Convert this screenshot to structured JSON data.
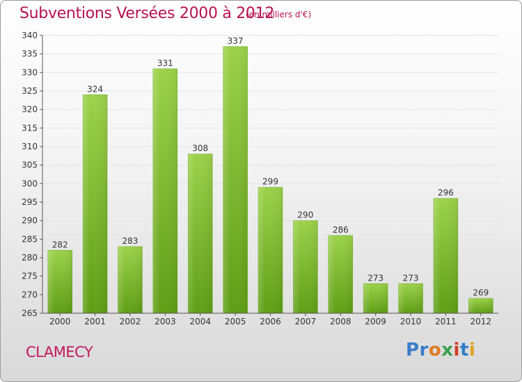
{
  "chart_data": {
    "type": "bar",
    "title": "Subventions Versées 2000 à 2012",
    "subtitle": "(en milliers d'€)",
    "categories": [
      "2000",
      "2001",
      "2002",
      "2003",
      "2004",
      "2005",
      "2006",
      "2007",
      "2008",
      "2009",
      "2010",
      "2011",
      "2012"
    ],
    "values": [
      282,
      324,
      283,
      331,
      308,
      337,
      299,
      290,
      286,
      273,
      273,
      296,
      269
    ],
    "ylim": [
      265,
      340
    ],
    "yticks": [
      265,
      270,
      275,
      280,
      285,
      290,
      295,
      300,
      305,
      310,
      315,
      320,
      325,
      330,
      335,
      340
    ],
    "xlabel": "",
    "ylabel": "",
    "grid": true,
    "bar_color": "#7cbf2a"
  },
  "footer": {
    "city": "CLAMECY",
    "logo_parts": [
      "Pr",
      "o",
      "x",
      "i",
      "t",
      "i"
    ]
  }
}
